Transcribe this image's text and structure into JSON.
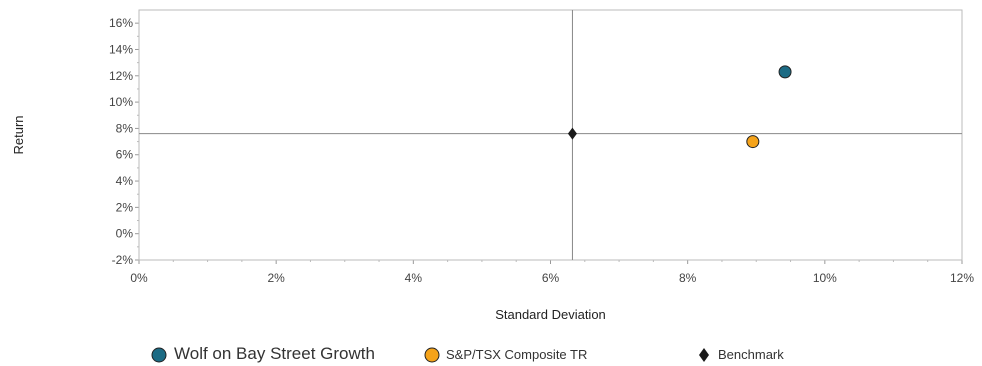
{
  "chart_data": {
    "type": "scatter",
    "xlabel": "Standard Deviation",
    "ylabel": "Return",
    "xlim": [
      0,
      12
    ],
    "ylim": [
      -2,
      17
    ],
    "x_ticks": [
      0,
      2,
      4,
      6,
      8,
      10,
      12
    ],
    "y_ticks": [
      -2,
      0,
      2,
      4,
      6,
      8,
      10,
      12,
      14,
      16
    ],
    "tick_format": "%",
    "grid": false,
    "legend_position": "bottom",
    "reference_lines": {
      "x": 6.32,
      "y": 7.6
    },
    "series": [
      {
        "name": "Wolf on Bay Street Growth",
        "marker": "circle",
        "color": "#1c6b84",
        "points": [
          {
            "x": 9.42,
            "y": 12.3
          }
        ]
      },
      {
        "name": "S&P/TSX Composite TR",
        "marker": "circle",
        "color": "#f5a31a",
        "points": [
          {
            "x": 8.95,
            "y": 7.0
          }
        ]
      },
      {
        "name": "Benchmark",
        "marker": "diamond",
        "color": "#1a1a1a",
        "points": [
          {
            "x": 6.32,
            "y": 7.6
          }
        ]
      }
    ]
  }
}
